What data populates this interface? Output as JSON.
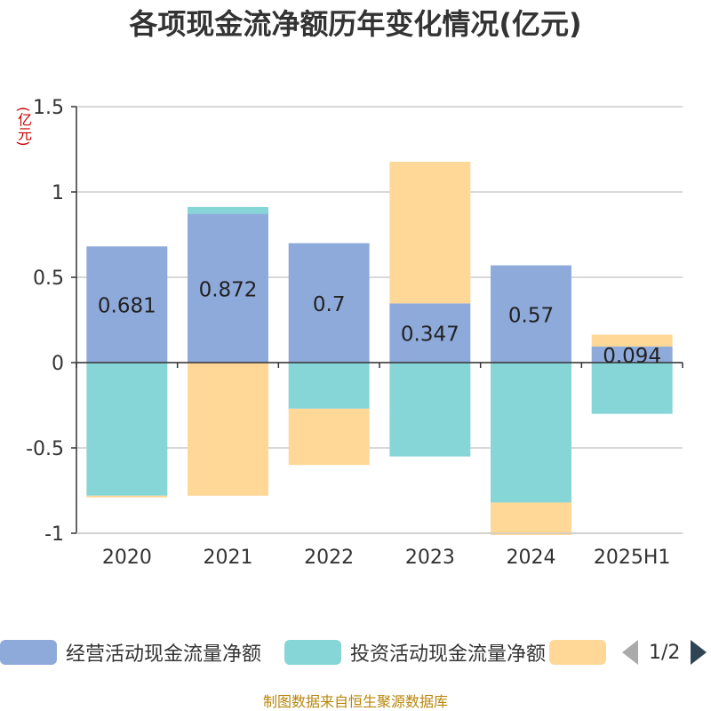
{
  "title": "各项现金流净额历年变化情况(亿元)",
  "unit_label": "(亿元)",
  "source": "制图数据来自恒生聚源数据库",
  "legend": {
    "items": [
      {
        "label": "经营活动现金流量净额",
        "color": "#8eaadb"
      },
      {
        "label": "投资活动现金流量净额",
        "color": "#86d5d7"
      },
      {
        "label": "",
        "color": "#ffd796"
      }
    ],
    "page": "1/2"
  },
  "chart_data": {
    "type": "bar",
    "stacked": true,
    "categories": [
      "2020",
      "2021",
      "2022",
      "2023",
      "2024",
      "2025H1"
    ],
    "ylim": [
      -1,
      1.5
    ],
    "yticks": [
      "1.5",
      "1",
      "0.5",
      "0",
      "-0.5",
      "-1"
    ],
    "grid": true,
    "legend_position": "bottom",
    "series": [
      {
        "name": "经营活动现金流量净额",
        "color": "#8eaadb",
        "values": [
          0.681,
          0.872,
          0.7,
          0.347,
          0.57,
          0.094
        ],
        "labels": [
          "0.681",
          "0.872",
          "0.7",
          "0.347",
          "0.57",
          "0.094"
        ]
      },
      {
        "name": "投资活动现金流量净额",
        "color": "#86d5d7",
        "values": [
          -0.78,
          0.04,
          -0.27,
          -0.55,
          -0.82,
          -0.3
        ]
      },
      {
        "name": "",
        "color": "#ffd796",
        "values": [
          -0.01,
          -0.78,
          -0.33,
          0.83,
          -0.19,
          0.07
        ]
      }
    ]
  }
}
